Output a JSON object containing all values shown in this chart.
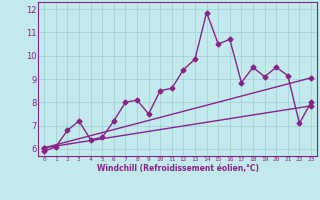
{
  "title": "",
  "xlabel": "Windchill (Refroidissement éolien,°C)",
  "ylabel": "",
  "background_color": "#c2eaed",
  "grid_color": "#9fcdd4",
  "line_color": "#882288",
  "spine_color": "#882288",
  "xlim": [
    -0.5,
    23.5
  ],
  "ylim": [
    5.7,
    12.3
  ],
  "yticks": [
    6,
    7,
    8,
    9,
    10,
    11,
    12
  ],
  "xticks": [
    0,
    1,
    2,
    3,
    4,
    5,
    6,
    7,
    8,
    9,
    10,
    11,
    12,
    13,
    14,
    15,
    16,
    17,
    18,
    19,
    20,
    21,
    22,
    23
  ],
  "xtick_labels": [
    "0",
    "1",
    "2",
    "3",
    "4",
    "5",
    "6",
    "7",
    "8",
    "9",
    "10",
    "11",
    "12",
    "13",
    "14",
    "15",
    "16",
    "17",
    "18",
    "19",
    "20",
    "21",
    "22",
    "23"
  ],
  "series1_x": [
    0,
    1,
    2,
    3,
    4,
    5,
    6,
    7,
    8,
    9,
    10,
    11,
    12,
    13,
    14,
    15,
    16,
    17,
    18,
    19,
    20,
    21,
    22,
    23
  ],
  "series1_y": [
    5.9,
    6.1,
    6.8,
    7.2,
    6.4,
    6.5,
    7.2,
    8.0,
    8.1,
    7.5,
    8.5,
    8.6,
    9.4,
    9.85,
    11.85,
    10.5,
    10.7,
    8.85,
    9.5,
    9.1,
    9.5,
    9.15,
    7.1,
    8.0
  ],
  "series2_x": [
    0,
    23
  ],
  "series2_y": [
    6.05,
    9.05
  ],
  "series3_x": [
    0,
    23
  ],
  "series3_y": [
    6.05,
    7.85
  ],
  "marker": "D",
  "markersize": 2.5,
  "linewidth": 1.0
}
